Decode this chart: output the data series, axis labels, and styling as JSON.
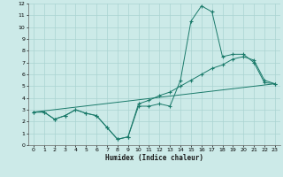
{
  "xlabel": "Humidex (Indice chaleur)",
  "bg_color": "#cceae8",
  "grid_color": "#aad4d2",
  "line_color": "#1a7a6a",
  "xlim": [
    -0.5,
    23.5
  ],
  "ylim": [
    0,
    12
  ],
  "xticks": [
    0,
    1,
    2,
    3,
    4,
    5,
    6,
    7,
    8,
    9,
    10,
    11,
    12,
    13,
    14,
    15,
    16,
    17,
    18,
    19,
    20,
    21,
    22,
    23
  ],
  "yticks": [
    0,
    1,
    2,
    3,
    4,
    5,
    6,
    7,
    8,
    9,
    10,
    11,
    12
  ],
  "line1_x": [
    0,
    1,
    2,
    3,
    4,
    5,
    6,
    7,
    8,
    9,
    10,
    11,
    12,
    13,
    14,
    15,
    16,
    17,
    18,
    19,
    20,
    21,
    22,
    23
  ],
  "line1_y": [
    2.8,
    2.8,
    2.2,
    2.5,
    3.0,
    2.7,
    2.5,
    1.5,
    0.5,
    0.7,
    3.3,
    3.3,
    3.5,
    3.3,
    5.5,
    10.5,
    11.8,
    11.3,
    7.5,
    7.7,
    7.7,
    7.0,
    5.3,
    5.2
  ],
  "line2_x": [
    0,
    1,
    2,
    3,
    4,
    5,
    6,
    7,
    8,
    9,
    10,
    11,
    12,
    13,
    14,
    15,
    16,
    17,
    18,
    19,
    20,
    21,
    22,
    23
  ],
  "line2_y": [
    2.8,
    2.8,
    2.2,
    2.5,
    3.0,
    2.7,
    2.5,
    1.5,
    0.5,
    0.7,
    3.5,
    3.8,
    4.2,
    4.5,
    5.0,
    5.5,
    6.0,
    6.5,
    6.8,
    7.3,
    7.5,
    7.2,
    5.5,
    5.2
  ],
  "line3_x": [
    0,
    23
  ],
  "line3_y": [
    2.8,
    5.2
  ]
}
